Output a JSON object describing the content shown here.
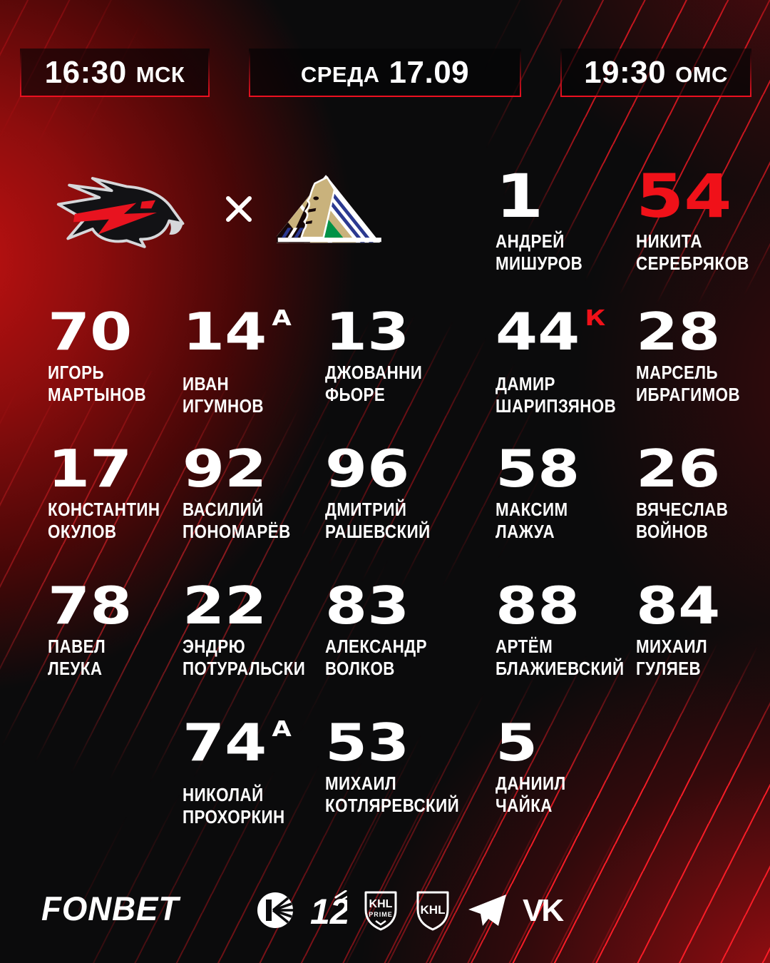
{
  "header": {
    "msk": {
      "time": "16:30",
      "zone": "МСК"
    },
    "date": {
      "day": "СРЕДА",
      "date": "17.09"
    },
    "oms": {
      "time": "19:30",
      "zone": "ОМС"
    }
  },
  "matchup": {
    "separator": "×",
    "home_logo": "avangard-hawk-logo",
    "away_logo": "salavat-yulaev-logo"
  },
  "goalies": [
    {
      "number": "1",
      "number_color": "white",
      "name_lines": [
        "АНДРЕЙ",
        "МИШУРОВ"
      ]
    },
    {
      "number": "54",
      "number_color": "red",
      "name_lines": [
        "НИКИТА",
        "СЕРЕБРЯКОВ"
      ]
    }
  ],
  "skaters": [
    [
      {
        "number": "70",
        "name_lines": [
          "ИГОРЬ",
          "МАРТЫНОВ"
        ]
      },
      {
        "number": "14",
        "letter": "А",
        "letter_color": "white",
        "name_lines": [
          "ИВАН",
          "ИГУМНОВ"
        ]
      },
      {
        "number": "13",
        "name_lines": [
          "ДЖОВАННИ",
          "ФЬОРЕ"
        ]
      },
      {
        "number": "44",
        "letter": "К",
        "letter_color": "red",
        "name_lines": [
          "ДАМИР",
          "ШАРИПЗЯНОВ"
        ]
      },
      {
        "number": "28",
        "name_lines": [
          "МАРСЕЛЬ",
          "ИБРАГИМОВ"
        ]
      }
    ],
    [
      {
        "number": "17",
        "name_lines": [
          "КОНСТАНТИН",
          "ОКУЛОВ"
        ]
      },
      {
        "number": "92",
        "name_lines": [
          "ВАСИЛИЙ",
          "ПОНОМАРЁВ"
        ]
      },
      {
        "number": "96",
        "name_lines": [
          "ДМИТРИЙ",
          "РАШЕВСКИЙ"
        ]
      },
      {
        "number": "58",
        "name_lines": [
          "МАКСИМ",
          "ЛАЖУА"
        ]
      },
      {
        "number": "26",
        "name_lines": [
          "ВЯЧЕСЛАВ",
          "ВОЙНОВ"
        ]
      }
    ],
    [
      {
        "number": "78",
        "name_lines": [
          "ПАВЕЛ",
          "ЛЕУКА"
        ]
      },
      {
        "number": "22",
        "name_lines": [
          "ЭНДРЮ",
          "ПОТУРАЛЬСКИ"
        ]
      },
      {
        "number": "83",
        "name_lines": [
          "АЛЕКСАНДР",
          "ВОЛКОВ"
        ]
      },
      {
        "number": "88",
        "name_lines": [
          "АРТЁМ",
          "БЛАЖИЕВСКИЙ"
        ]
      },
      {
        "number": "84",
        "name_lines": [
          "МИХАИЛ",
          "ГУЛЯЕВ"
        ]
      }
    ],
    [
      {
        "number": "74",
        "letter": "А",
        "letter_color": "white",
        "col": 2,
        "name_lines": [
          "НИКОЛАЙ",
          "ПРОХОРКИН"
        ]
      },
      {
        "number": "53",
        "col": 3,
        "name_lines": [
          "МИХАИЛ",
          "КОТЛЯРЕВСКИЙ"
        ]
      },
      {
        "number": "5",
        "col": 4,
        "name_lines": [
          "ДАНИИЛ",
          "ЧАЙКА"
        ]
      }
    ]
  ],
  "footer": {
    "sponsor": "FONBET",
    "social_icons": [
      "khl-tv-icon",
      "channel-12-icon",
      "khl-prime-icon",
      "khl-icon",
      "telegram-icon",
      "vk-icon"
    ]
  },
  "colors": {
    "accent": "#f01119",
    "border_red": "#ee1020",
    "background": "#0b0b0c",
    "glow_red": "#b80f0f",
    "salavat_gold": "#c9b27c",
    "salavat_blue": "#2b3990",
    "salavat_green": "#009247"
  }
}
